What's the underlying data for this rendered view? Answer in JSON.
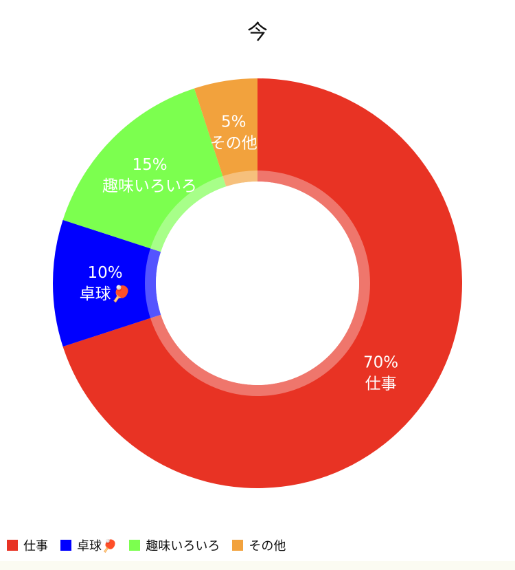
{
  "chart_data": {
    "type": "pie",
    "title": "今",
    "categories": [
      "仕事",
      "卓球🏓",
      "趣味いろいろ",
      "その他"
    ],
    "values": [
      70,
      10,
      15,
      5
    ],
    "labels": [
      "70%",
      "10%",
      "15%",
      "5%"
    ],
    "colors": [
      "#e83324",
      "#0000ff",
      "#7cff4f",
      "#f2a23d"
    ],
    "legend": {
      "placement": "bottom-left",
      "items": [
        "仕事",
        "卓球🏓",
        "趣味いろいろ",
        "その他"
      ]
    }
  }
}
